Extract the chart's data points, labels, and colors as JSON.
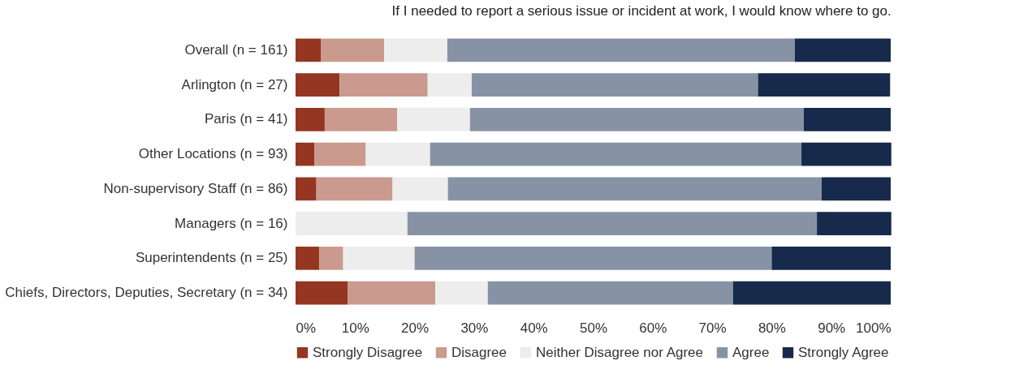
{
  "chart_data": {
    "type": "bar",
    "orientation": "horizontal",
    "stacked": true,
    "title": "If I needed to report a serious issue or incident at work, I would know where to go.",
    "categories": [
      "Overall (n = 161)",
      "Arlington (n = 27)",
      "Paris (n = 41)",
      "Other Locations (n = 93)",
      "Non-supervisory Staff (n = 86)",
      "Managers (n = 16)",
      "Superintendents (n = 25)",
      "Chiefs, Directors, Deputies, Secretary (n = 34)"
    ],
    "series": [
      {
        "name": "Strongly Disagree",
        "color": "#943621",
        "values": [
          4.3,
          7.4,
          4.9,
          3.2,
          3.5,
          0,
          4,
          8.8
        ]
      },
      {
        "name": "Disagree",
        "color": "#c99a8d",
        "values": [
          10.6,
          14.8,
          12.2,
          8.6,
          12.8,
          0,
          4,
          14.7
        ]
      },
      {
        "name": "Neither Disagree nor Agree",
        "color": "#ededed",
        "values": [
          10.6,
          7.4,
          12.2,
          10.8,
          9.3,
          18.8,
          12,
          8.8
        ]
      },
      {
        "name": "Agree",
        "color": "#8793a5",
        "values": [
          58.4,
          48.1,
          56.1,
          62.4,
          62.8,
          68.8,
          60,
          41.2
        ]
      },
      {
        "name": "Strongly Agree",
        "color": "#172a4c",
        "values": [
          16.1,
          22.2,
          14.6,
          15.1,
          11.6,
          12.5,
          20,
          26.5
        ]
      }
    ],
    "xlim": [
      0,
      100
    ],
    "xticks": [
      {
        "value": 0,
        "label": "0%"
      },
      {
        "value": 10,
        "label": "10%"
      },
      {
        "value": 20,
        "label": "20%"
      },
      {
        "value": 30,
        "label": "30%"
      },
      {
        "value": 40,
        "label": "40%"
      },
      {
        "value": 50,
        "label": "50%"
      },
      {
        "value": 60,
        "label": "60%"
      },
      {
        "value": 70,
        "label": "70%"
      },
      {
        "value": 80,
        "label": "80%"
      },
      {
        "value": 90,
        "label": "90%"
      },
      {
        "value": 100,
        "label": "100%"
      }
    ],
    "grid": false,
    "legend": "bottom"
  }
}
